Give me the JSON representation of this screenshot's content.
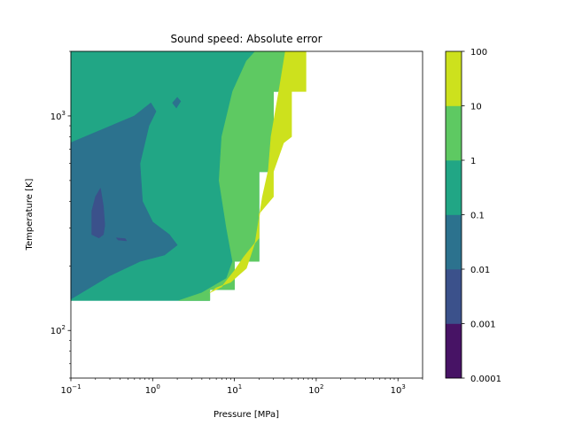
{
  "chart_data": {
    "type": "heatmap",
    "title": "Sound speed: Absolute error",
    "xlabel": "Pressure [MPa]",
    "ylabel": "Temperature [K]",
    "xscale": "log",
    "yscale": "log",
    "xlim": [
      0.1,
      2000
    ],
    "ylim": [
      60,
      2000
    ],
    "xticks": [
      {
        "base": "10",
        "exp": "−1",
        "value": 0.1
      },
      {
        "base": "10",
        "exp": "0",
        "value": 1
      },
      {
        "base": "10",
        "exp": "1",
        "value": 10
      },
      {
        "base": "10",
        "exp": "2",
        "value": 100
      },
      {
        "base": "10",
        "exp": "3",
        "value": 1000
      }
    ],
    "yticks": [
      {
        "base": "10",
        "exp": "2",
        "value": 100
      },
      {
        "base": "10",
        "exp": "3",
        "value": 1000
      }
    ],
    "colorbar": {
      "levels": [
        "0.0001",
        "0.001",
        "0.01",
        "0.1",
        "1",
        "10",
        "100"
      ],
      "colors": [
        "#471365",
        "#3b518b",
        "#2c728e",
        "#21a685",
        "#5ec962",
        "#cde11d"
      ]
    },
    "regions": [
      {
        "level_index": 3,
        "label": "0.1–1",
        "points": [
          [
            0.1,
            2000
          ],
          [
            18,
            2000
          ],
          [
            50,
            2000
          ],
          [
            50,
            1300
          ],
          [
            30,
            1300
          ],
          [
            30,
            550
          ],
          [
            20,
            550
          ],
          [
            20,
            210
          ],
          [
            10,
            210
          ],
          [
            10,
            155
          ],
          [
            5,
            155
          ],
          [
            5,
            138
          ],
          [
            0.1,
            138
          ]
        ]
      },
      {
        "level_index": 4,
        "label": "1–10",
        "points": [
          [
            18,
            2000
          ],
          [
            50,
            2000
          ],
          [
            50,
            1300
          ],
          [
            30,
            1300
          ],
          [
            30,
            550
          ],
          [
            20,
            550
          ],
          [
            20,
            210
          ],
          [
            10,
            210
          ],
          [
            10,
            155
          ],
          [
            5,
            155
          ],
          [
            5,
            138
          ],
          [
            2.1,
            138
          ],
          [
            4.0,
            150
          ],
          [
            8.0,
            175
          ],
          [
            9.5,
            210
          ],
          [
            8.0,
            300
          ],
          [
            6.5,
            500
          ],
          [
            7.0,
            800
          ],
          [
            9.5,
            1300
          ],
          [
            14,
            1800
          ]
        ]
      },
      {
        "level_index": 5,
        "label": "10–100",
        "points": [
          [
            42,
            2000
          ],
          [
            75,
            2000
          ],
          [
            75,
            1300
          ],
          [
            50,
            1300
          ],
          [
            50,
            800
          ],
          [
            40,
            750
          ],
          [
            30,
            550
          ],
          [
            30,
            420
          ],
          [
            20,
            350
          ],
          [
            20,
            270
          ],
          [
            13,
            220
          ],
          [
            10,
            190
          ],
          [
            7,
            160
          ],
          [
            5,
            150
          ],
          [
            6,
            158
          ],
          [
            9,
            168
          ],
          [
            14,
            195
          ],
          [
            18,
            260
          ],
          [
            22,
            420
          ],
          [
            26,
            560
          ],
          [
            28,
            800
          ],
          [
            36,
            1400
          ]
        ]
      },
      {
        "level_index": 2,
        "label": "0.01–0.1",
        "points": [
          [
            0.1,
            750
          ],
          [
            0.6,
            1000
          ],
          [
            0.95,
            1150
          ],
          [
            1.1,
            1050
          ],
          [
            0.9,
            900
          ],
          [
            0.7,
            600
          ],
          [
            0.75,
            400
          ],
          [
            1.0,
            320
          ],
          [
            1.6,
            280
          ],
          [
            2.0,
            250
          ],
          [
            1.4,
            225
          ],
          [
            0.7,
            210
          ],
          [
            0.3,
            180
          ],
          [
            0.1,
            140
          ]
        ]
      },
      {
        "level_index": 2,
        "label": "0.01–0.1",
        "points": [
          [
            1.75,
            1150
          ],
          [
            2.0,
            1220
          ],
          [
            2.2,
            1170
          ],
          [
            1.95,
            1090
          ]
        ]
      },
      {
        "level_index": 1,
        "label": "0.001–0.01",
        "points": [
          [
            0.18,
            360
          ],
          [
            0.2,
            420
          ],
          [
            0.23,
            460
          ],
          [
            0.25,
            380
          ],
          [
            0.26,
            310
          ],
          [
            0.25,
            280
          ],
          [
            0.22,
            270
          ],
          [
            0.18,
            280
          ]
        ]
      },
      {
        "level_index": 1,
        "label": "0.001–0.01",
        "points": [
          [
            0.36,
            270
          ],
          [
            0.46,
            268
          ],
          [
            0.48,
            262
          ],
          [
            0.38,
            264
          ]
        ]
      }
    ]
  }
}
